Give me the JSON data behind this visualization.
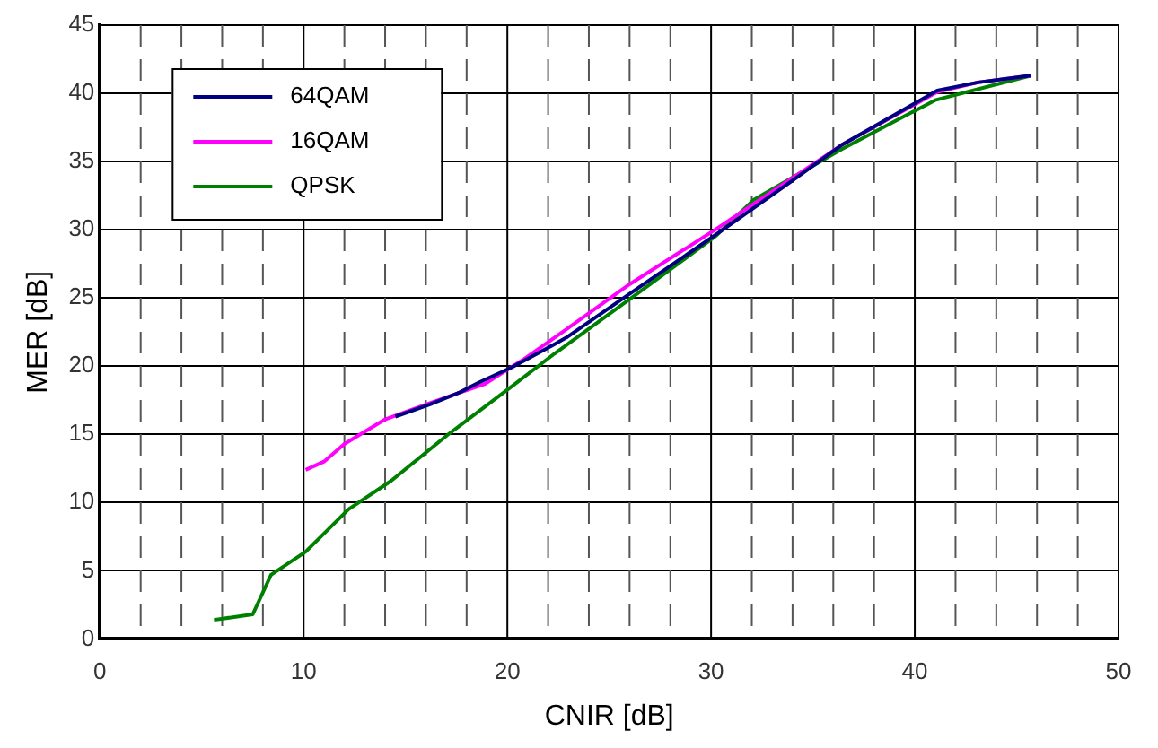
{
  "chart_data": {
    "type": "line",
    "xlabel": "CNIR [dB]",
    "ylabel": "MER [dB]",
    "xlim": [
      0,
      50
    ],
    "ylim": [
      0,
      45
    ],
    "xticks": [
      0,
      {
        "value": 2,
        "label": null
      },
      {
        "value": 4,
        "label": null
      },
      {
        "value": 6,
        "label": null
      },
      {
        "value": 8,
        "label": null
      },
      10,
      {
        "value": 12,
        "label": null
      },
      {
        "value": 14,
        "label": null
      },
      {
        "value": 16,
        "label": null
      },
      {
        "value": 18,
        "label": null
      },
      20,
      {
        "value": 22,
        "label": null
      },
      {
        "value": 24,
        "label": null
      },
      {
        "value": 26,
        "label": null
      },
      {
        "value": 28,
        "label": null
      },
      30,
      {
        "value": 32,
        "label": null
      },
      {
        "value": 34,
        "label": null
      },
      {
        "value": 36,
        "label": null
      },
      {
        "value": 38,
        "label": null
      },
      40,
      {
        "value": 42,
        "label": null
      },
      {
        "value": 44,
        "label": null
      },
      {
        "value": 46,
        "label": null
      },
      {
        "value": 48,
        "label": null
      },
      50
    ],
    "yticks": [
      0,
      5,
      10,
      15,
      20,
      25,
      30,
      35,
      40,
      45
    ],
    "grid": true,
    "legend": "top left",
    "marker": "none",
    "line_style": "solid",
    "series": [
      {
        "name": "64QAM",
        "color": "#000080",
        "x": [
          14.5,
          16.2,
          17.7,
          18.6,
          20.2,
          22.3,
          22.9,
          26,
          30.2,
          33.9,
          36.4,
          41.1,
          43.1,
          45.7
        ],
        "values": [
          16.3,
          17.2,
          18.1,
          18.8,
          19.9,
          21.6,
          22.1,
          25.3,
          29.6,
          33.5,
          36.2,
          40.2,
          40.8,
          41.3
        ]
      },
      {
        "name": "16QAM",
        "color": "#ff00ff",
        "x": [
          10.1,
          11,
          12,
          14,
          16.2,
          18.9,
          20.8,
          22.9,
          26,
          30.2,
          33.9,
          36.4,
          41.1,
          43.1,
          45.7
        ],
        "values": [
          12.4,
          13,
          14.3,
          16.1,
          17.3,
          18.7,
          20.5,
          22.7,
          26,
          30,
          33.7,
          36.2,
          40.1,
          40.8,
          41.3
        ]
      },
      {
        "name": "QPSK",
        "color": "#008000",
        "x": [
          5.6,
          7.5,
          8.4,
          10.1,
          12.2,
          14.3,
          17.1,
          20.2,
          22.3,
          26,
          30.2,
          32.1,
          36.4,
          41,
          45.7
        ],
        "values": [
          1.4,
          1.8,
          4.7,
          6.4,
          9.5,
          11.6,
          15,
          18.5,
          20.9,
          24.9,
          29.5,
          32.2,
          35.9,
          39.5,
          41.3
        ]
      }
    ]
  }
}
